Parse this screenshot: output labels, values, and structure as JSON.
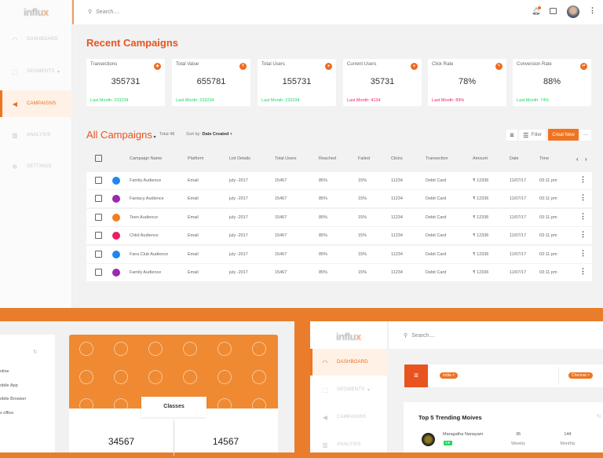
{
  "app": {
    "logo": "influx",
    "search_placeholder": "Search...."
  },
  "sidebar": {
    "items": [
      {
        "label": "DASHBOARD",
        "icon": "dashboard-icon"
      },
      {
        "label": "SEGMENTS",
        "icon": "segments-icon"
      },
      {
        "label": "CAMPAIGNS",
        "icon": "megaphone-icon",
        "active": true
      },
      {
        "label": "ANALYSIS",
        "icon": "bar-chart-icon"
      },
      {
        "label": "SETTINGS",
        "icon": "gear-icon"
      }
    ]
  },
  "recent": {
    "title": "Recent Campaigns",
    "cards": [
      {
        "label": "Transections",
        "value": "355731",
        "last": "Last Month: 233234",
        "trend": "up"
      },
      {
        "label": "Total Value",
        "value": "655781",
        "last": "Last Month: 233234",
        "trend": "up"
      },
      {
        "label": "Total Users",
        "value": "155731",
        "last": "Last Month: 233234",
        "trend": "up"
      },
      {
        "label": "Current Users",
        "value": "35731",
        "last": "Last Month: 4134",
        "trend": "down"
      },
      {
        "label": "Click Rate",
        "value": "78%",
        "last": "Last Month: 89%",
        "trend": "down"
      },
      {
        "label": "Conversion Rate",
        "value": "88%",
        "last": "Last Month: 74%",
        "trend": "up"
      }
    ]
  },
  "colors": {
    "accent": "#e8531f",
    "up": "#1ed760",
    "down": "#f0245a"
  },
  "campaigns": {
    "title": "All Campaigns",
    "total": "Total 48",
    "sort_label": "Sort by:",
    "sort_value": "Date Created",
    "filter": "Filter",
    "create": "Creat New",
    "columns": [
      "Campaign Name",
      "Platform",
      "List Details",
      "Total Users",
      "Reached",
      "Failed",
      "Clicks",
      "Transection",
      "Amount",
      "Date",
      "Time"
    ],
    "rows": [
      {
        "color": "#1e88f0",
        "cells": [
          "Family Audience",
          "Email",
          "july -2017",
          "15467",
          "85%",
          "15%",
          "11234",
          "Debit Card",
          "₹ 12336",
          "11/07/17",
          "03:11 pm"
        ]
      },
      {
        "color": "#9c27b0",
        "cells": [
          "Fantacy Audience",
          "Email",
          "july -2017",
          "15467",
          "85%",
          "15%",
          "11234",
          "Debit Card",
          "₹ 12336",
          "11/07/17",
          "03:11 pm"
        ]
      },
      {
        "color": "#f57c1f",
        "cells": [
          "Teen Audience",
          "Email",
          "july -2017",
          "15467",
          "85%",
          "15%",
          "11234",
          "Debit Card",
          "₹ 12336",
          "11/07/17",
          "03:11 pm"
        ]
      },
      {
        "color": "#e91e63",
        "cells": [
          "Chlid Audience",
          "Email",
          "july -2017",
          "15467",
          "85%",
          "15%",
          "11234",
          "Debit Card",
          "₹ 12336",
          "11/07/17",
          "03:11 pm"
        ]
      },
      {
        "color": "#1e88f0",
        "cells": [
          "Fans Club Audience",
          "Email",
          "july -2017",
          "15467",
          "85%",
          "15%",
          "11234",
          "Debit Card",
          "₹ 12336",
          "11/07/17",
          "03:11 pm"
        ]
      },
      {
        "color": "#9c27b0",
        "cells": [
          "Family Audience",
          "Email",
          "july -2017",
          "15467",
          "85%",
          "15%",
          "11234",
          "Debit Card",
          "₹ 12336",
          "11/07/17",
          "03:11 pm"
        ]
      }
    ]
  },
  "bottom_left": {
    "list": [
      "nline",
      "obile App",
      "obile Browser",
      "x office"
    ],
    "tab": "Classes",
    "stats": [
      "34567",
      "14567"
    ]
  },
  "bottom_right": {
    "logo": "influx",
    "search_placeholder": "Search....",
    "nav": [
      "DASHBOARD",
      "SEGMENTS",
      "CAMPAIGNS",
      "ANALYSIS"
    ],
    "chips": [
      "India",
      "Chennai"
    ],
    "card_title": "Top 5 Trending Moives",
    "movie": {
      "name": "Maragatha Nanayam",
      "rating": "4★",
      "weekly": "36",
      "weekly_label": "Weekly",
      "monthly": "144",
      "monthly_label": "Monthly"
    }
  }
}
